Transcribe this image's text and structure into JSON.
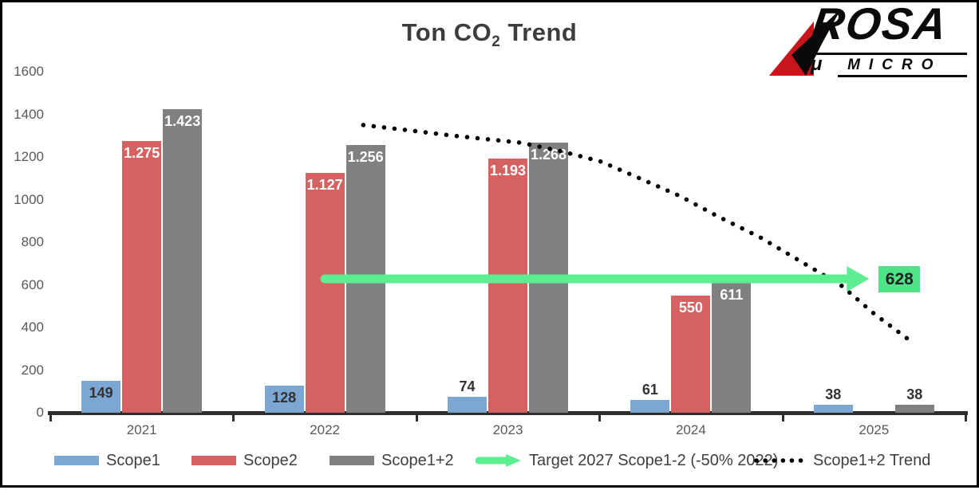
{
  "title": {
    "prefix": "Ton CO",
    "subscript": "2",
    "suffix": " Trend"
  },
  "logo": {
    "name": "ROSA",
    "mu": "μ",
    "subtitle": "MICRO",
    "accent_color": "#C8161D",
    "text_color": "#0A0A0A"
  },
  "legend": {
    "items": [
      {
        "label": "Scope1"
      },
      {
        "label": "Scope2"
      },
      {
        "label": "Scope1+2"
      },
      {
        "label": "Target 2027 Scope1-2 (-50% 2022)"
      },
      {
        "label": "Scope1+2 Trend"
      }
    ]
  },
  "chart_data": {
    "type": "combo",
    "title": "Ton CO2 Trend",
    "categories": [
      "2021",
      "2022",
      "2023",
      "2024",
      "2025"
    ],
    "ylim": [
      0,
      1600
    ],
    "grid": false,
    "legend_position": "bottom",
    "axis_color": "#2E2E2E",
    "tick_label_color": "#595959",
    "y_ticks": [
      {
        "value": 0,
        "label": "0"
      },
      {
        "value": 200,
        "label": "200"
      },
      {
        "value": 400,
        "label": "400"
      },
      {
        "value": 600,
        "label": "600"
      },
      {
        "value": 800,
        "label": "800"
      },
      {
        "value": 1000,
        "label": "1000"
      },
      {
        "value": 1200,
        "label": "1200"
      },
      {
        "value": 1400,
        "label": "1400"
      },
      {
        "value": 1600,
        "label": "1600"
      }
    ],
    "series": [
      {
        "name": "Scope1",
        "type": "bar",
        "color": "#7CA7D2",
        "values": [
          149,
          128,
          74,
          61,
          38
        ],
        "labels": [
          "149",
          "128",
          "74",
          "61",
          "38"
        ],
        "label_inside": [
          true,
          true,
          false,
          false,
          false
        ],
        "label_color_inside": "#333333",
        "label_color_outside": "#333333"
      },
      {
        "name": "Scope2",
        "type": "bar",
        "color": "#D66161",
        "values": [
          1275,
          1127,
          1193,
          550,
          null
        ],
        "labels": [
          "1.275",
          "1.127",
          "1.193",
          "550",
          null
        ],
        "label_inside": [
          true,
          true,
          true,
          true,
          null
        ],
        "label_color_inside": "#FFFFFF",
        "label_color_outside": "#333333"
      },
      {
        "name": "Scope1+2",
        "type": "bar",
        "color": "#808080",
        "values": [
          1423,
          1256,
          1268,
          611,
          38
        ],
        "labels": [
          "1.423",
          "1.256",
          "1.268",
          "611",
          "38"
        ],
        "label_inside": [
          true,
          true,
          true,
          true,
          false
        ],
        "label_color_inside": "#FFFFFF",
        "label_color_outside": "#333333"
      },
      {
        "name": "Target 2027 Scope1-2 (-50% 2022)",
        "type": "target-arrow",
        "color": "#5CEE90"
      },
      {
        "name": "Scope1+2 Trend",
        "type": "dotted-trend",
        "color": "#000000"
      }
    ],
    "target": {
      "name": "Target 2027 Scope1-2 (-50% 2022)",
      "value": 628,
      "label": "628",
      "from_year": 2022.0,
      "to_year": 2025.0,
      "arrow_color": "#5CEE90",
      "box_color": "#4FE287",
      "box_text_color": "#222222"
    },
    "trend": {
      "name": "Scope1+2 Trend",
      "color": "#000000",
      "points": [
        [
          2022.21,
          1350
        ],
        [
          2022.45,
          1326
        ],
        [
          2022.7,
          1300
        ],
        [
          2023.07,
          1267
        ],
        [
          2023.3,
          1225
        ],
        [
          2023.51,
          1178
        ],
        [
          2023.72,
          1100
        ],
        [
          2023.94,
          1017
        ],
        [
          2024.15,
          920
        ],
        [
          2024.38,
          822
        ],
        [
          2024.6,
          710
        ],
        [
          2024.82,
          598
        ],
        [
          2025.0,
          465
        ],
        [
          2025.21,
          330
        ]
      ]
    }
  }
}
